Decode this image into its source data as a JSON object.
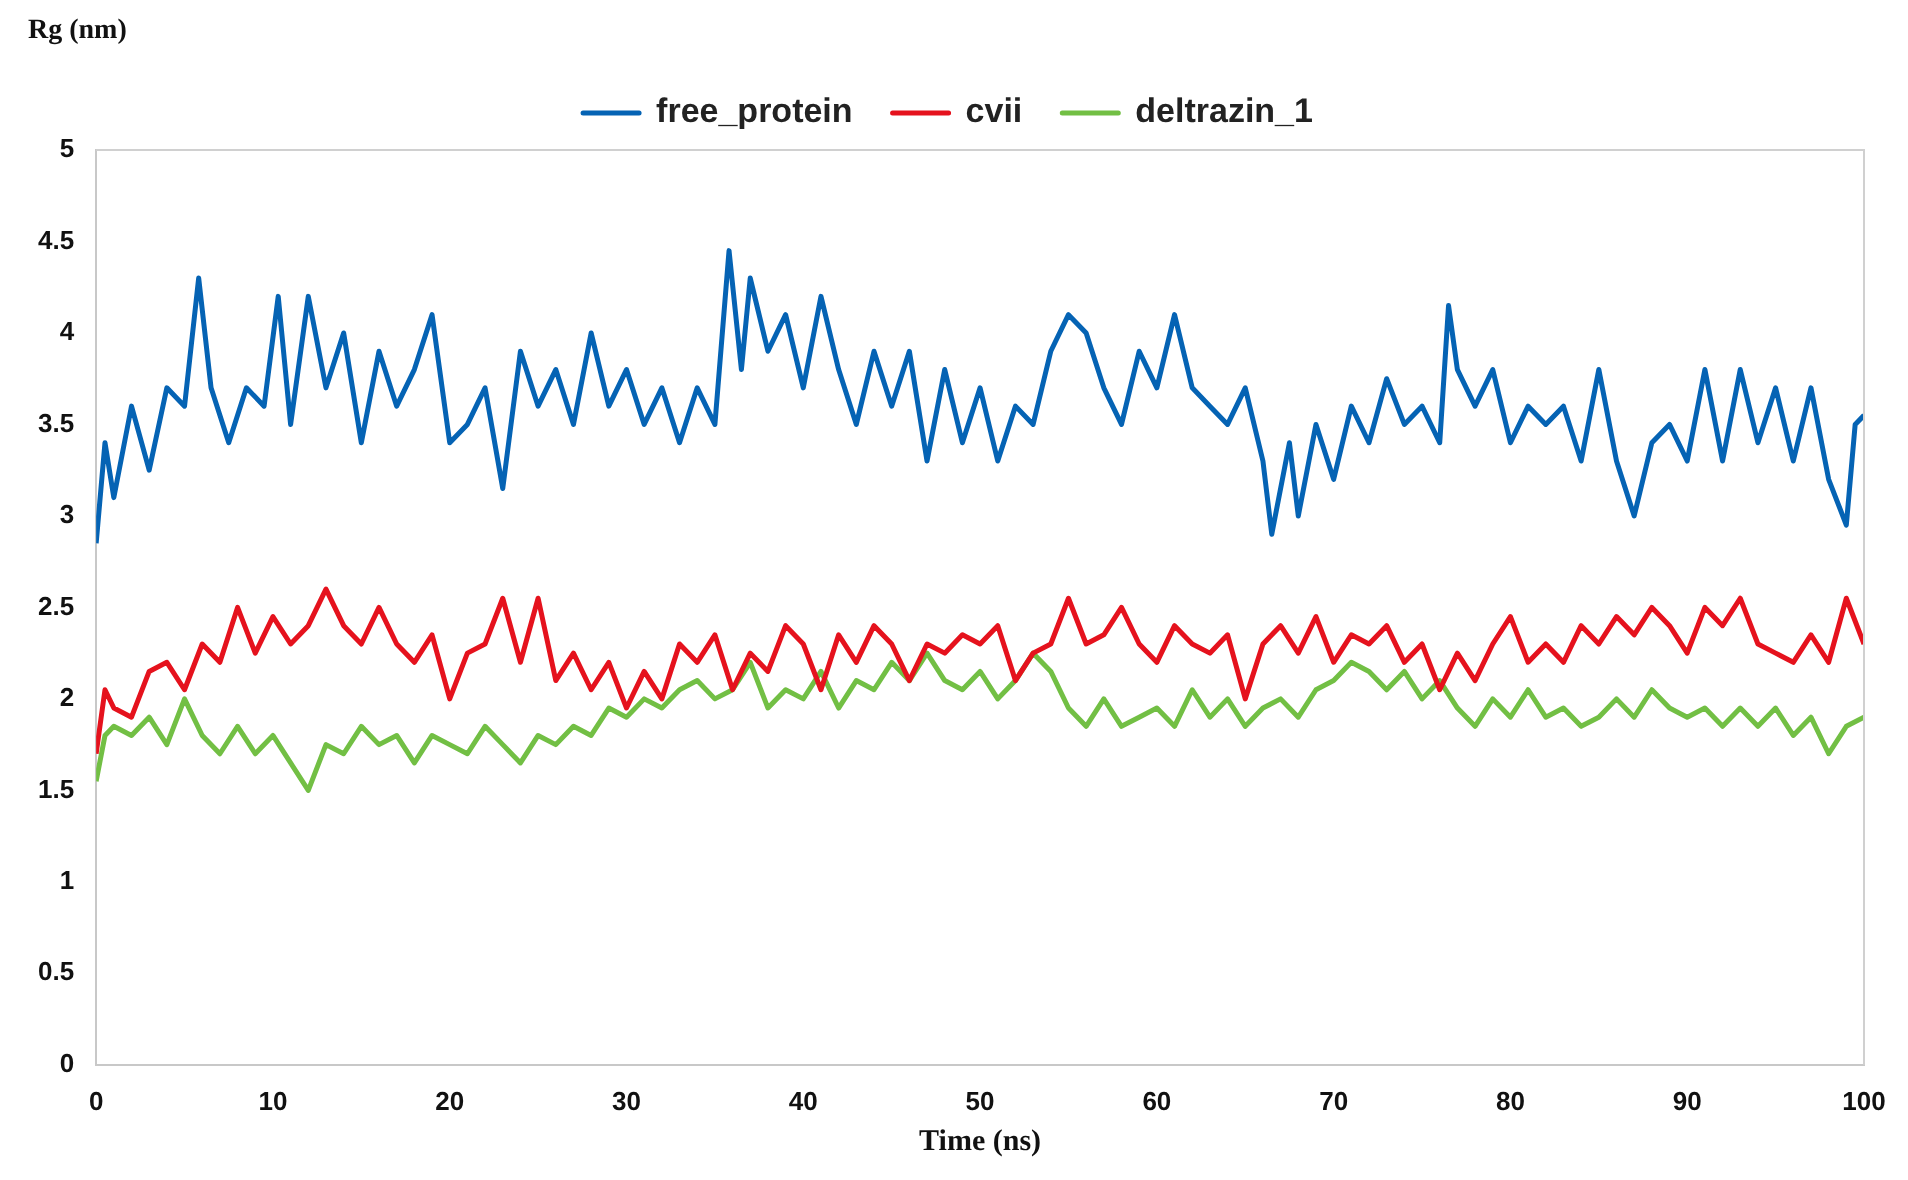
{
  "chart_data": {
    "type": "line",
    "xlabel": "Time (ns)",
    "ylabel": "Rg (nm)",
    "xlim": [
      0,
      100
    ],
    "xticks": [
      0,
      10,
      20,
      30,
      40,
      50,
      60,
      70,
      80,
      90,
      100
    ],
    "ylim": [
      0,
      5
    ],
    "yticks": [
      0,
      0.5,
      1,
      1.5,
      2,
      2.5,
      3,
      3.5,
      4,
      4.5,
      5
    ],
    "grid": false,
    "legend": "top",
    "marker": "none",
    "line_style": "solid",
    "series": [
      {
        "name": "free_protein",
        "color": "#0563b4",
        "x": [
          0,
          0.5,
          1,
          2,
          3,
          4,
          5,
          5.8,
          6.5,
          7.5,
          8.5,
          9.5,
          10.3,
          11,
          12,
          13,
          14,
          15,
          16,
          17,
          18,
          19,
          20,
          21,
          22,
          23,
          24,
          25,
          26,
          27,
          28,
          29,
          30,
          31,
          32,
          33,
          34,
          35,
          35.8,
          36.5,
          37,
          38,
          39,
          40,
          41,
          42,
          43,
          44,
          45,
          46,
          47,
          48,
          49,
          50,
          51,
          52,
          53,
          54,
          55,
          56,
          57,
          58,
          59,
          60,
          61,
          62,
          63,
          64,
          65,
          66,
          66.5,
          67.5,
          68,
          69,
          70,
          71,
          72,
          73,
          74,
          75,
          76,
          76.5,
          77,
          78,
          79,
          80,
          81,
          82,
          83,
          84,
          85,
          86,
          87,
          88,
          89,
          90,
          91,
          92,
          93,
          94,
          95,
          96,
          97,
          98,
          99,
          99.5,
          100
        ],
        "values": [
          2.85,
          3.4,
          3.1,
          3.6,
          3.25,
          3.7,
          3.6,
          4.3,
          3.7,
          3.4,
          3.7,
          3.6,
          4.2,
          3.5,
          4.2,
          3.7,
          4.0,
          3.4,
          3.9,
          3.6,
          3.8,
          4.1,
          3.4,
          3.5,
          3.7,
          3.15,
          3.9,
          3.6,
          3.8,
          3.5,
          4.0,
          3.6,
          3.8,
          3.5,
          3.7,
          3.4,
          3.7,
          3.5,
          4.45,
          3.8,
          4.3,
          3.9,
          4.1,
          3.7,
          4.2,
          3.8,
          3.5,
          3.9,
          3.6,
          3.9,
          3.3,
          3.8,
          3.4,
          3.7,
          3.3,
          3.6,
          3.5,
          3.9,
          4.1,
          4.0,
          3.7,
          3.5,
          3.9,
          3.7,
          4.1,
          3.7,
          3.6,
          3.5,
          3.7,
          3.3,
          2.9,
          3.4,
          3.0,
          3.5,
          3.2,
          3.6,
          3.4,
          3.75,
          3.5,
          3.6,
          3.4,
          4.15,
          3.8,
          3.6,
          3.8,
          3.4,
          3.6,
          3.5,
          3.6,
          3.3,
          3.8,
          3.3,
          3.0,
          3.4,
          3.5,
          3.3,
          3.8,
          3.3,
          3.8,
          3.4,
          3.7,
          3.3,
          3.7,
          3.2,
          2.95,
          3.5,
          3.55
        ]
      },
      {
        "name": "cvii",
        "color": "#e5121d",
        "x": [
          0,
          0.5,
          1,
          2,
          3,
          4,
          5,
          6,
          7,
          8,
          9,
          10,
          11,
          12,
          13,
          14,
          15,
          16,
          17,
          18,
          19,
          20,
          21,
          22,
          23,
          24,
          25,
          26,
          27,
          28,
          29,
          30,
          31,
          32,
          33,
          34,
          35,
          36,
          37,
          38,
          39,
          40,
          41,
          42,
          43,
          44,
          45,
          46,
          47,
          48,
          49,
          50,
          51,
          52,
          53,
          54,
          55,
          56,
          57,
          58,
          59,
          60,
          61,
          62,
          63,
          64,
          65,
          66,
          67,
          68,
          69,
          70,
          71,
          72,
          73,
          74,
          75,
          76,
          77,
          78,
          79,
          80,
          81,
          82,
          83,
          84,
          85,
          86,
          87,
          88,
          89,
          90,
          91,
          92,
          93,
          94,
          95,
          96,
          97,
          98,
          99,
          100
        ],
        "values": [
          1.7,
          2.05,
          1.95,
          1.9,
          2.15,
          2.2,
          2.05,
          2.3,
          2.2,
          2.5,
          2.25,
          2.45,
          2.3,
          2.4,
          2.6,
          2.4,
          2.3,
          2.5,
          2.3,
          2.2,
          2.35,
          2.0,
          2.25,
          2.3,
          2.55,
          2.2,
          2.55,
          2.1,
          2.25,
          2.05,
          2.2,
          1.95,
          2.15,
          2.0,
          2.3,
          2.2,
          2.35,
          2.05,
          2.25,
          2.15,
          2.4,
          2.3,
          2.05,
          2.35,
          2.2,
          2.4,
          2.3,
          2.1,
          2.3,
          2.25,
          2.35,
          2.3,
          2.4,
          2.1,
          2.25,
          2.3,
          2.55,
          2.3,
          2.35,
          2.5,
          2.3,
          2.2,
          2.4,
          2.3,
          2.25,
          2.35,
          2.0,
          2.3,
          2.4,
          2.25,
          2.45,
          2.2,
          2.35,
          2.3,
          2.4,
          2.2,
          2.3,
          2.05,
          2.25,
          2.1,
          2.3,
          2.45,
          2.2,
          2.3,
          2.2,
          2.4,
          2.3,
          2.45,
          2.35,
          2.5,
          2.4,
          2.25,
          2.5,
          2.4,
          2.55,
          2.3,
          2.25,
          2.2,
          2.35,
          2.2,
          2.55,
          2.3
        ]
      },
      {
        "name": "deltrazin_1",
        "color": "#72bf44",
        "x": [
          0,
          0.5,
          1,
          2,
          3,
          4,
          5,
          6,
          7,
          8,
          9,
          10,
          11,
          12,
          13,
          14,
          15,
          16,
          17,
          18,
          19,
          20,
          21,
          22,
          23,
          24,
          25,
          26,
          27,
          28,
          29,
          30,
          31,
          32,
          33,
          34,
          35,
          36,
          37,
          38,
          39,
          40,
          41,
          42,
          43,
          44,
          45,
          46,
          47,
          48,
          49,
          50,
          51,
          52,
          53,
          54,
          55,
          56,
          57,
          58,
          59,
          60,
          61,
          62,
          63,
          64,
          65,
          66,
          67,
          68,
          69,
          70,
          71,
          72,
          73,
          74,
          75,
          76,
          77,
          78,
          79,
          80,
          81,
          82,
          83,
          84,
          85,
          86,
          87,
          88,
          89,
          90,
          91,
          92,
          93,
          94,
          95,
          96,
          97,
          98,
          99,
          100
        ],
        "values": [
          1.55,
          1.8,
          1.85,
          1.8,
          1.9,
          1.75,
          2.0,
          1.8,
          1.7,
          1.85,
          1.7,
          1.8,
          1.65,
          1.5,
          1.75,
          1.7,
          1.85,
          1.75,
          1.8,
          1.65,
          1.8,
          1.75,
          1.7,
          1.85,
          1.75,
          1.65,
          1.8,
          1.75,
          1.85,
          1.8,
          1.95,
          1.9,
          2.0,
          1.95,
          2.05,
          2.1,
          2.0,
          2.05,
          2.2,
          1.95,
          2.05,
          2.0,
          2.15,
          1.95,
          2.1,
          2.05,
          2.2,
          2.1,
          2.25,
          2.1,
          2.05,
          2.15,
          2.0,
          2.1,
          2.25,
          2.15,
          1.95,
          1.85,
          2.0,
          1.85,
          1.9,
          1.95,
          1.85,
          2.05,
          1.9,
          2.0,
          1.85,
          1.95,
          2.0,
          1.9,
          2.05,
          2.1,
          2.2,
          2.15,
          2.05,
          2.15,
          2.0,
          2.1,
          1.95,
          1.85,
          2.0,
          1.9,
          2.05,
          1.9,
          1.95,
          1.85,
          1.9,
          2.0,
          1.9,
          2.05,
          1.95,
          1.9,
          1.95,
          1.85,
          1.95,
          1.85,
          1.95,
          1.8,
          1.9,
          1.7,
          1.85,
          1.9
        ]
      }
    ]
  }
}
